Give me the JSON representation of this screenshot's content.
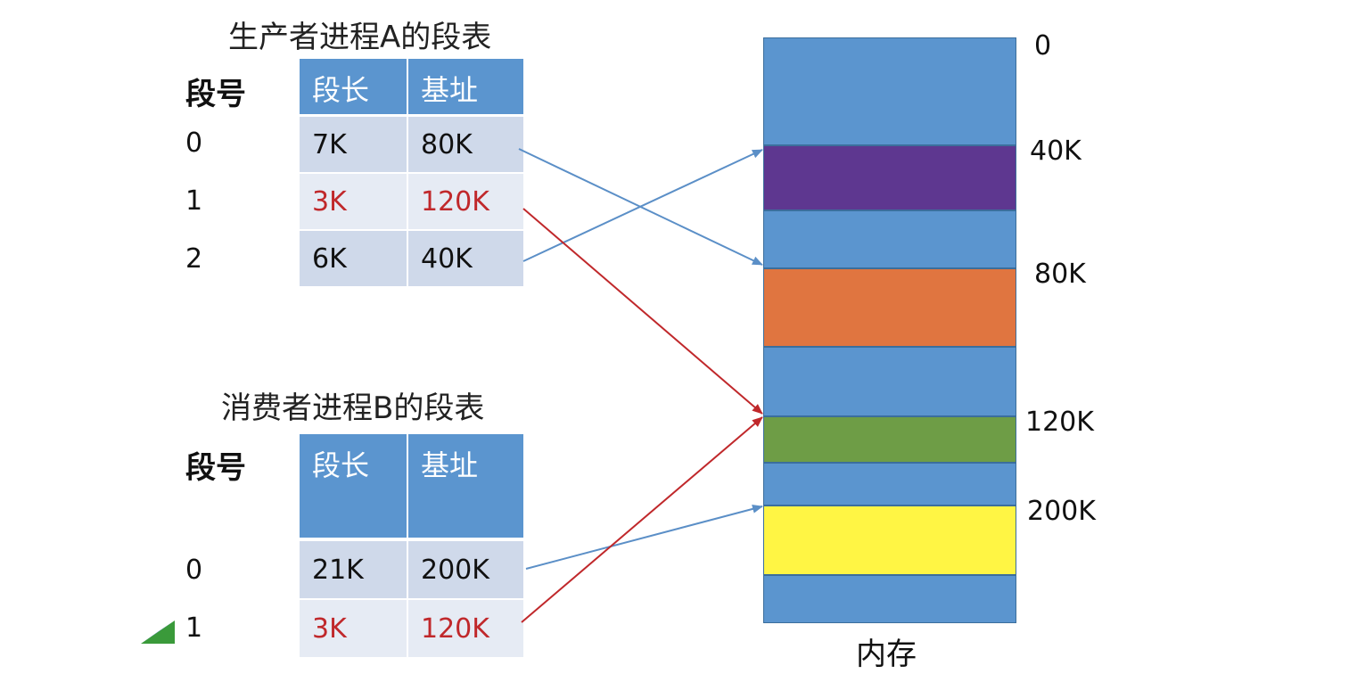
{
  "tableA": {
    "title": "生产者进程A的段表",
    "segno_label": "段号",
    "headers": [
      "段长",
      "基址"
    ],
    "rows": [
      {
        "num": "0",
        "len": "7K",
        "base": "80K",
        "shared": false
      },
      {
        "num": "1",
        "len": "3K",
        "base": "120K",
        "shared": true
      },
      {
        "num": "2",
        "len": "6K",
        "base": "40K",
        "shared": false
      }
    ]
  },
  "tableB": {
    "title": "消费者进程B的段表",
    "segno_label": "段号",
    "headers": [
      "段长",
      "基址"
    ],
    "rows": [
      {
        "num": "0",
        "len": "21K",
        "base": "200K",
        "shared": false
      },
      {
        "num": "1",
        "len": "3K",
        "base": "120K",
        "shared": true
      }
    ]
  },
  "memory": {
    "caption": "内存",
    "addresses": [
      "0",
      "40K",
      "80K",
      "120K",
      "200K"
    ],
    "segments": [
      {
        "name": "free-region",
        "color": "#5b95cf"
      },
      {
        "name": "segment-A2",
        "color": "#5e3790"
      },
      {
        "name": "free-region",
        "color": "#5b95cf"
      },
      {
        "name": "segment-A0",
        "color": "#e07540"
      },
      {
        "name": "free-region",
        "color": "#5b95cf"
      },
      {
        "name": "shared-segment",
        "color": "#6e9d46"
      },
      {
        "name": "free-region",
        "color": "#5b95cf"
      },
      {
        "name": "segment-B0",
        "color": "#fff544"
      },
      {
        "name": "free-region",
        "color": "#5b95cf"
      }
    ]
  },
  "colors": {
    "header_blue": "#5b95cf",
    "shared_red": "#c0282b",
    "arrow_blue": "#5b8fc7",
    "arrow_red": "#c0282b"
  },
  "pointer_icon": "green-triangle-pointer-icon"
}
